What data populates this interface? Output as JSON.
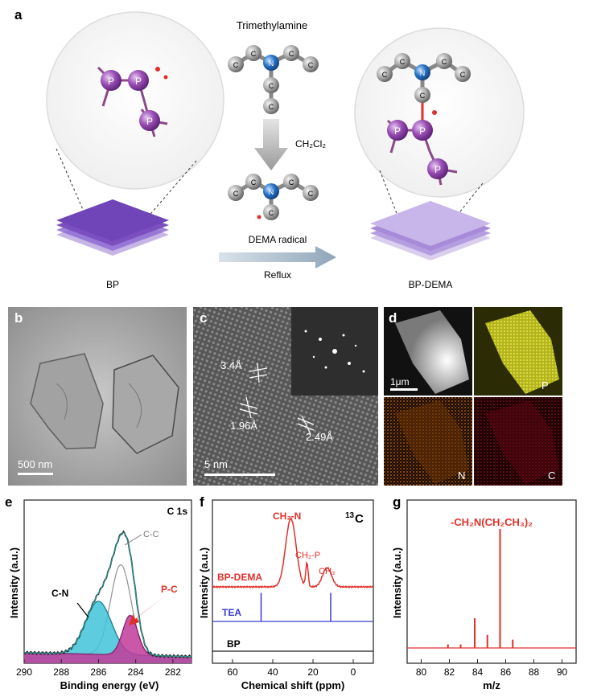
{
  "panels": {
    "a": {
      "label": "a",
      "molecule_title": "Trimethylamine",
      "solvent": "CH₂Cl₂",
      "arrow_top": "DEMA radical",
      "arrow_bottom": "Reflux",
      "left_caption": "BP",
      "right_caption": "BP-DEMA",
      "atoms": {
        "P": "P",
        "C": "C",
        "N": "N"
      }
    },
    "b": {
      "label": "b",
      "scale_bar": "500 nm"
    },
    "c": {
      "label": "c",
      "scale_bar": "5 nm",
      "spacings": [
        "3.4Å",
        "1.96Å",
        "2.49Å"
      ]
    },
    "d": {
      "label": "d",
      "scale_bar": "1μm",
      "maps": [
        "P",
        "N",
        "C"
      ]
    },
    "e": {
      "label": "e",
      "peak_label": "C 1s",
      "annot_cc": "C-C",
      "annot_cn": "C-N",
      "annot_pc": "P-C"
    },
    "f": {
      "label": "f",
      "nucleus": "13",
      "nucleus_el": "C",
      "peak_ch2n": "CH₂-N",
      "peak_ch2p": "CH₂-P",
      "peak_ch3": "CH₃",
      "trace_bpdema": "BP-DEMA",
      "trace_tea": "TEA",
      "trace_bp": "BP"
    },
    "g": {
      "label": "g",
      "fragment": "-CH₂N(CH₂CH₃)₂"
    }
  },
  "colors": {
    "bp_purple": "#7b4fc0",
    "n_blue": "#2a73c7",
    "red": "#e0302a",
    "tea_blue": "#3a3ad0",
    "cn_fill": "#3fc3d8",
    "pc_fill": "#c2399a"
  },
  "chart_data": [
    {
      "type": "line",
      "panel": "e",
      "title": "C 1s",
      "xlabel": "Binding energy (eV)",
      "ylabel": "Intensity (a.u.)",
      "xlim": [
        290,
        281
      ],
      "x_ticks": [
        290,
        288,
        286,
        284,
        282
      ],
      "components": [
        {
          "name": "C-C",
          "center": 284.8,
          "height": 0.68,
          "width": 0.55
        },
        {
          "name": "C-N",
          "center": 286.0,
          "height": 0.4,
          "width": 0.7
        },
        {
          "name": "P-C",
          "center": 284.3,
          "height": 0.3,
          "width": 0.4
        }
      ]
    },
    {
      "type": "line",
      "panel": "f",
      "xlabel": "Chemical shift (ppm)",
      "ylabel": "Intensity (a.u.)",
      "xlim": [
        70,
        -10
      ],
      "x_ticks": [
        60,
        40,
        20,
        0
      ],
      "series": [
        {
          "name": "BP-DEMA",
          "peaks": [
            {
              "ppm": 31,
              "height": 1.0
            },
            {
              "ppm": 23,
              "height": 0.35
            },
            {
              "ppm": 13,
              "height": 0.28
            }
          ]
        },
        {
          "name": "TEA",
          "peaks": [
            {
              "ppm": 45.8,
              "height": 0.8
            },
            {
              "ppm": 11.2,
              "height": 0.8
            }
          ]
        },
        {
          "name": "BP",
          "peaks": []
        }
      ]
    },
    {
      "type": "bar",
      "panel": "g",
      "xlabel": "m/z",
      "ylabel": "Intensity (a.u.)",
      "xlim": [
        79,
        91
      ],
      "x_ticks": [
        80,
        82,
        84,
        86,
        88,
        90
      ],
      "x": [
        81.9,
        82.8,
        83.8,
        84.7,
        85.6,
        86.5
      ],
      "values": [
        0.03,
        0.03,
        0.25,
        0.11,
        1.0,
        0.07
      ]
    }
  ]
}
